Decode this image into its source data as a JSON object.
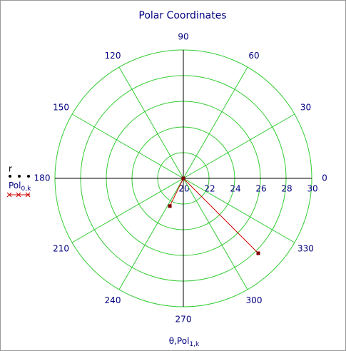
{
  "chart_data": {
    "type": "polar",
    "title": "Polar Coordinates",
    "rlim": [
      20,
      30
    ],
    "rticks": [
      20,
      22,
      24,
      26,
      28,
      30
    ],
    "angticks": [
      0,
      30,
      60,
      90,
      120,
      150,
      180,
      210,
      240,
      270,
      300,
      330
    ],
    "grid": true,
    "grid_color": "#33cc33",
    "legend": [
      {
        "text": "r"
      },
      {
        "text": "Pol",
        "subscript": "0,k"
      }
    ],
    "xlabel": {
      "text": "θ,Pol",
      "subscript": "1,k"
    },
    "series": [
      {
        "color": "#cc0000",
        "marker_color": "#800000",
        "theta": [
          244,
          0,
          315
        ],
        "values": [
          22.4,
          20,
          28.25
        ]
      }
    ]
  }
}
